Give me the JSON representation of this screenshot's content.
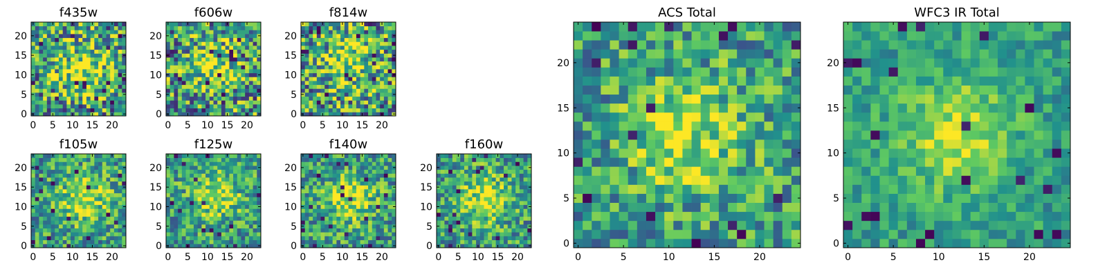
{
  "figure": {
    "colormap": "viridis",
    "colormap_stops": [
      "#440154",
      "#3b528b",
      "#21918c",
      "#5ec962",
      "#fde725"
    ]
  },
  "chart_data": [
    {
      "type": "heatmap",
      "title": "f435w",
      "grid_size": [
        24,
        24
      ],
      "xlim": [
        -0.5,
        23.5
      ],
      "ylim": [
        -0.5,
        23.5
      ],
      "xticks": [
        0,
        5,
        10,
        15,
        20
      ],
      "yticks": [
        0,
        5,
        10,
        15,
        20
      ],
      "peak_center": [
        13,
        12
      ],
      "noise_level": "high",
      "seed": 11
    },
    {
      "type": "heatmap",
      "title": "f606w",
      "grid_size": [
        24,
        24
      ],
      "xlim": [
        -0.5,
        23.5
      ],
      "ylim": [
        -0.5,
        23.5
      ],
      "xticks": [
        0,
        5,
        10,
        15,
        20
      ],
      "yticks": [
        0,
        5,
        10,
        15,
        20
      ],
      "peak_center": [
        12,
        12
      ],
      "noise_level": "high",
      "seed": 23
    },
    {
      "type": "heatmap",
      "title": "f814w",
      "grid_size": [
        24,
        24
      ],
      "xlim": [
        -0.5,
        23.5
      ],
      "ylim": [
        -0.5,
        23.5
      ],
      "xticks": [
        0,
        5,
        10,
        15,
        20
      ],
      "yticks": [
        0,
        5,
        10,
        15,
        20
      ],
      "peak_center": [
        12,
        13
      ],
      "noise_level": "high",
      "seed": 37
    },
    {
      "type": "heatmap",
      "title": "f105w",
      "grid_size": [
        24,
        24
      ],
      "xlim": [
        -0.5,
        23.5
      ],
      "ylim": [
        -0.5,
        23.5
      ],
      "xticks": [
        0,
        5,
        10,
        15,
        20
      ],
      "yticks": [
        0,
        5,
        10,
        15,
        20
      ],
      "peak_center": [
        13,
        12
      ],
      "noise_level": "medium",
      "seed": 41
    },
    {
      "type": "heatmap",
      "title": "f125w",
      "grid_size": [
        24,
        24
      ],
      "xlim": [
        -0.5,
        23.5
      ],
      "ylim": [
        -0.5,
        23.5
      ],
      "xticks": [
        0,
        5,
        10,
        15,
        20
      ],
      "yticks": [
        0,
        5,
        10,
        15,
        20
      ],
      "peak_center": [
        12,
        13
      ],
      "noise_level": "medium",
      "seed": 53
    },
    {
      "type": "heatmap",
      "title": "f140w",
      "grid_size": [
        24,
        24
      ],
      "xlim": [
        -0.5,
        23.5
      ],
      "ylim": [
        -0.5,
        23.5
      ],
      "xticks": [
        0,
        5,
        10,
        15,
        20
      ],
      "yticks": [
        0,
        5,
        10,
        15,
        20
      ],
      "peak_center": [
        12,
        12
      ],
      "noise_level": "medium",
      "seed": 67
    },
    {
      "type": "heatmap",
      "title": "f160w",
      "grid_size": [
        24,
        24
      ],
      "xlim": [
        -0.5,
        23.5
      ],
      "ylim": [
        -0.5,
        23.5
      ],
      "xticks": [
        0,
        5,
        10,
        15,
        20
      ],
      "yticks": [
        0,
        5,
        10,
        15,
        20
      ],
      "peak_center": [
        12,
        12
      ],
      "noise_level": "medium",
      "seed": 79
    },
    {
      "type": "heatmap",
      "title": "ACS Total",
      "grid_size": [
        25,
        25
      ],
      "xlim": [
        -0.5,
        24.5
      ],
      "ylim": [
        -0.5,
        24.5
      ],
      "xticks": [
        0,
        5,
        10,
        15,
        20
      ],
      "yticks": [
        0,
        5,
        10,
        15,
        20
      ],
      "peak_center": [
        12,
        12
      ],
      "noise_level": "medium",
      "seed": 97
    },
    {
      "type": "heatmap",
      "title": "WFC3 IR Total",
      "grid_size": [
        25,
        25
      ],
      "xlim": [
        -0.5,
        24.5
      ],
      "ylim": [
        -0.5,
        24.5
      ],
      "xticks": [
        0,
        5,
        10,
        15,
        20
      ],
      "yticks": [
        0,
        5,
        10,
        15,
        20
      ],
      "peak_center": [
        12,
        12
      ],
      "noise_level": "low",
      "seed": 113
    }
  ]
}
